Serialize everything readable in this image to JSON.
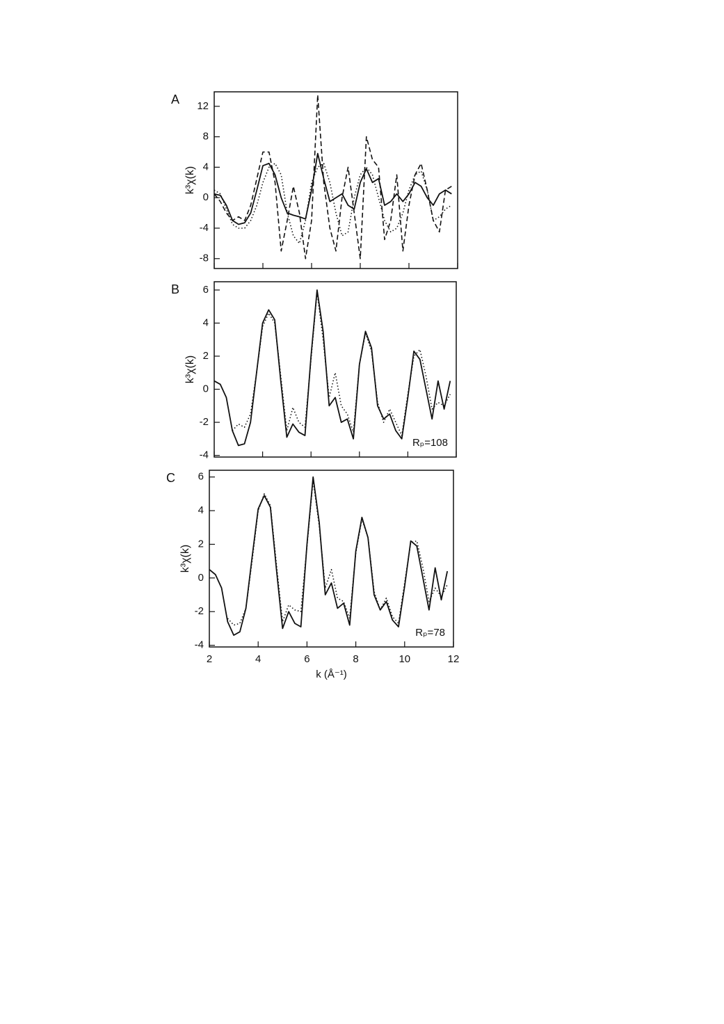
{
  "chart_data": [
    {
      "type": "line",
      "label": "A",
      "y_label": "k³χ(k)",
      "x": [
        2,
        2.25,
        2.5,
        2.75,
        3,
        3.25,
        3.5,
        3.75,
        4,
        4.25,
        4.5,
        4.75,
        5,
        5.25,
        5.5,
        5.75,
        6,
        6.25,
        6.5,
        6.75,
        7,
        7.25,
        7.5,
        7.75,
        8,
        8.25,
        8.5,
        8.75,
        9,
        9.25,
        9.5,
        9.75,
        10,
        10.25,
        10.5,
        10.75,
        11,
        11.25,
        11.5,
        11.75
      ],
      "xlim": [
        2,
        12
      ],
      "xticks": [
        2,
        4,
        6,
        8,
        10,
        12
      ],
      "ylim": [
        -9.3,
        13.9
      ],
      "yticks": [
        -8,
        -4,
        0,
        4,
        8,
        12
      ],
      "series": [
        {
          "color": "#111111",
          "line_style": "solid",
          "values": [
            0.5,
            0.3,
            -1.0,
            -3.0,
            -3.5,
            -3.3,
            -2.0,
            1.0,
            4.2,
            4.5,
            3.0,
            0.0,
            -2.0,
            -2.3,
            -2.5,
            -2.8,
            1.0,
            5.8,
            2.5,
            -0.5,
            0.0,
            0.5,
            -1.0,
            -1.5,
            2.0,
            3.8,
            2.0,
            2.5,
            -1.0,
            -0.5,
            0.5,
            -0.5,
            0.5,
            2.0,
            1.5,
            0.0,
            -1.0,
            0.5,
            1.0,
            0.5
          ]
        },
        {
          "color": "#111111",
          "line_style": "dashed",
          "values": [
            0.5,
            -0.5,
            -2.0,
            -3.0,
            -2.5,
            -3.0,
            -1.0,
            2.5,
            6.0,
            6.0,
            2.0,
            -7.0,
            -3.0,
            1.5,
            -2.0,
            -8.0,
            -3.0,
            13.5,
            2.0,
            -4.0,
            -7.0,
            0.0,
            4.0,
            -2.0,
            -8.0,
            8.0,
            5.0,
            4.0,
            -5.5,
            -3.0,
            3.0,
            -7.0,
            -1.0,
            3.0,
            4.5,
            1.0,
            -3.0,
            -4.5,
            1.0,
            1.5
          ]
        },
        {
          "color": "#111111",
          "line_style": "dotted",
          "values": [
            1.0,
            0.5,
            -1.5,
            -3.5,
            -4.0,
            -4.0,
            -3.0,
            -1.0,
            2.0,
            4.0,
            4.5,
            3.0,
            -2.0,
            -5.0,
            -6.0,
            -3.0,
            2.0,
            4.0,
            4.5,
            2.0,
            -2.0,
            -5.0,
            -4.5,
            0.0,
            3.0,
            4.0,
            3.0,
            0.0,
            -3.0,
            -4.5,
            -4.0,
            -2.0,
            1.0,
            3.0,
            3.5,
            1.0,
            -3.0,
            -2.5,
            -1.5,
            -1.0
          ]
        }
      ]
    },
    {
      "type": "line",
      "label": "B",
      "y_label": "k³χ(k)",
      "annotation": "Rₚ=108",
      "x": [
        2,
        2.25,
        2.5,
        2.75,
        3,
        3.25,
        3.5,
        3.75,
        4,
        4.25,
        4.5,
        4.75,
        5,
        5.25,
        5.5,
        5.75,
        6,
        6.25,
        6.5,
        6.75,
        7,
        7.25,
        7.5,
        7.75,
        8,
        8.25,
        8.5,
        8.75,
        9,
        9.25,
        9.5,
        9.75,
        10,
        10.25,
        10.5,
        10.75,
        11,
        11.25,
        11.5,
        11.75
      ],
      "xlim": [
        2,
        12
      ],
      "xticks": [
        2,
        4,
        6,
        8,
        10,
        12
      ],
      "ylim": [
        -4.1,
        6.5
      ],
      "yticks": [
        -4,
        -2,
        0,
        2,
        4,
        6
      ],
      "series": [
        {
          "color": "#111111",
          "line_style": "solid",
          "values": [
            0.5,
            0.3,
            -0.5,
            -2.5,
            -3.4,
            -3.3,
            -2.0,
            1.0,
            4.0,
            4.8,
            4.2,
            0.5,
            -2.9,
            -2.1,
            -2.6,
            -2.8,
            2.0,
            6.0,
            3.5,
            -1.0,
            -0.5,
            -2.0,
            -1.8,
            -3.0,
            1.5,
            3.5,
            2.5,
            -1.0,
            -1.8,
            -1.5,
            -2.5,
            -3.0,
            -0.5,
            2.3,
            1.8,
            0.0,
            -1.8,
            0.5,
            -1.2,
            0.5
          ]
        },
        {
          "color": "#111111",
          "line_style": "dotted",
          "values": [
            null,
            null,
            null,
            -2.5,
            -2.1,
            -2.3,
            -1.5,
            1.0,
            3.8,
            4.6,
            4.0,
            0.8,
            -2.5,
            -1.1,
            -2.0,
            -2.3,
            1.8,
            5.9,
            3.0,
            -0.5,
            1.0,
            -1.0,
            -1.5,
            -2.6,
            1.5,
            3.4,
            2.3,
            -0.8,
            -2.0,
            -1.2,
            -2.0,
            -2.8,
            -0.3,
            2.0,
            2.4,
            0.8,
            -1.2,
            -0.8,
            -1.0,
            -0.3
          ]
        }
      ]
    },
    {
      "type": "line",
      "label": "C",
      "y_label": "k³χ(k)",
      "x_label": "k (Å⁻¹)",
      "annotation": "Rₚ=78",
      "x": [
        2,
        2.25,
        2.5,
        2.75,
        3,
        3.25,
        3.5,
        3.75,
        4,
        4.25,
        4.5,
        4.75,
        5,
        5.25,
        5.5,
        5.75,
        6,
        6.25,
        6.5,
        6.75,
        7,
        7.25,
        7.5,
        7.75,
        8,
        8.25,
        8.5,
        8.75,
        9,
        9.25,
        9.5,
        9.75,
        10,
        10.25,
        10.5,
        10.75,
        11,
        11.25,
        11.5,
        11.75
      ],
      "xlim": [
        2,
        12
      ],
      "xticks": [
        2,
        4,
        6,
        8,
        10,
        12
      ],
      "ylim": [
        -4.1,
        6.4
      ],
      "yticks": [
        -4,
        -2,
        0,
        2,
        4,
        6
      ],
      "series": [
        {
          "color": "#111111",
          "line_style": "solid",
          "values": [
            0.5,
            0.2,
            -0.6,
            -2.6,
            -3.4,
            -3.2,
            -1.8,
            1.2,
            4.1,
            4.9,
            4.2,
            0.5,
            -3.0,
            -2.0,
            -2.7,
            -2.9,
            2.0,
            6.0,
            3.3,
            -1.0,
            -0.3,
            -1.8,
            -1.5,
            -2.8,
            1.6,
            3.6,
            2.4,
            -1.0,
            -1.9,
            -1.4,
            -2.5,
            -2.9,
            -0.5,
            2.2,
            1.9,
            0.0,
            -1.9,
            0.6,
            -1.3,
            0.4
          ]
        },
        {
          "color": "#111111",
          "line_style": "dotted",
          "values": [
            null,
            null,
            null,
            -2.4,
            -2.8,
            -2.7,
            -1.8,
            1.0,
            4.0,
            5.0,
            4.3,
            0.8,
            -2.6,
            -1.6,
            -1.9,
            -2.0,
            1.9,
            5.8,
            3.1,
            -0.6,
            0.5,
            -1.2,
            -1.4,
            -2.4,
            1.5,
            3.5,
            2.4,
            -0.8,
            -1.9,
            -1.2,
            -2.3,
            -2.7,
            -0.3,
            2.1,
            2.2,
            0.6,
            -1.4,
            -0.6,
            -1.1,
            -0.4
          ]
        }
      ]
    }
  ]
}
